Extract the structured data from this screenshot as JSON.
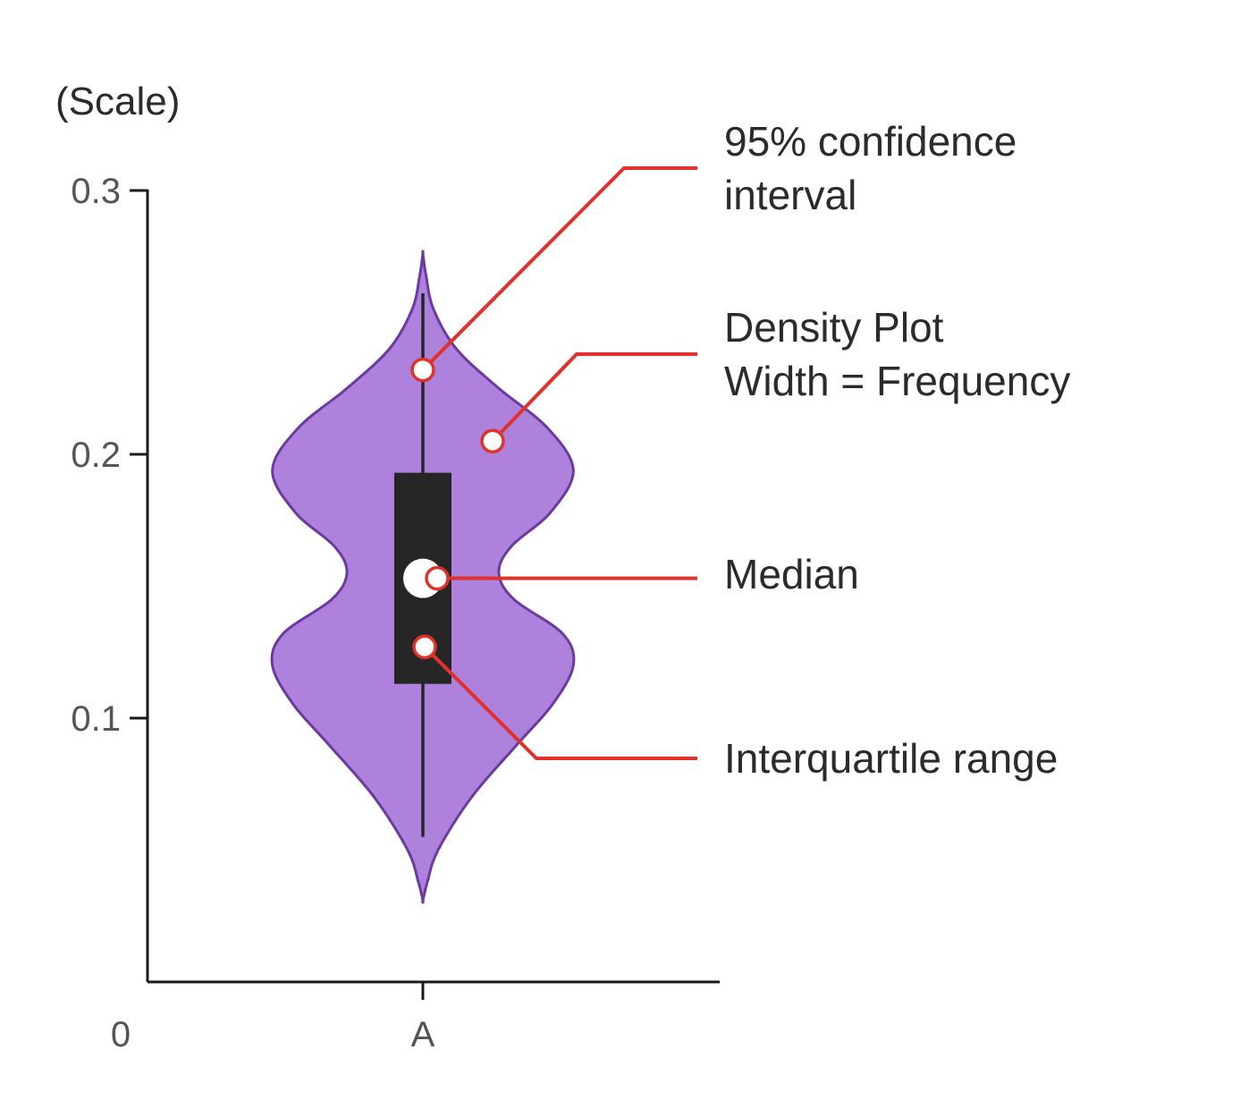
{
  "chart_data": {
    "type": "violin",
    "title": "",
    "xlabel": "",
    "ylabel": "(Scale)",
    "ylim": [
      0,
      0.3
    ],
    "yticks": [
      "0.3",
      "0.2",
      "0.1"
    ],
    "origin_label": "0",
    "categories": [
      "A"
    ],
    "grid": false,
    "legend": "none",
    "violins": [
      {
        "category": "A",
        "min": 0.055,
        "q1": 0.113,
        "median": 0.153,
        "q3": 0.193,
        "max": 0.261,
        "density_extent": [
          0.031,
          0.276
        ],
        "density_profile": [
          {
            "y": 0.031,
            "w": 0.0
          },
          {
            "y": 0.038,
            "w": 0.03
          },
          {
            "y": 0.05,
            "w": 0.1
          },
          {
            "y": 0.07,
            "w": 0.32
          },
          {
            "y": 0.09,
            "w": 0.62
          },
          {
            "y": 0.105,
            "w": 0.85
          },
          {
            "y": 0.12,
            "w": 0.99
          },
          {
            "y": 0.132,
            "w": 0.92
          },
          {
            "y": 0.145,
            "w": 0.6
          },
          {
            "y": 0.155,
            "w": 0.5
          },
          {
            "y": 0.165,
            "w": 0.58
          },
          {
            "y": 0.178,
            "w": 0.84
          },
          {
            "y": 0.194,
            "w": 0.99
          },
          {
            "y": 0.21,
            "w": 0.82
          },
          {
            "y": 0.225,
            "w": 0.5
          },
          {
            "y": 0.24,
            "w": 0.22
          },
          {
            "y": 0.255,
            "w": 0.07
          },
          {
            "y": 0.268,
            "w": 0.02
          },
          {
            "y": 0.276,
            "w": 0.0
          }
        ]
      }
    ],
    "annotations": [
      {
        "lines": [
          "95% confidence",
          "interval"
        ],
        "target": "whisker",
        "y": 0.232
      },
      {
        "lines": [
          "Density Plot",
          "Width = Frequency"
        ],
        "target": "density",
        "y": 0.205
      },
      {
        "lines": [
          "Median"
        ],
        "target": "median",
        "y": 0.153
      },
      {
        "lines": [
          "Interquartile range"
        ],
        "target": "box",
        "y": 0.127
      }
    ]
  },
  "colors": {
    "violin_fill": "#ae81dd",
    "violin_stroke": "#6a3a9e",
    "box": "#262626",
    "median_dot": "#ffffff",
    "annotation": "#e0312a",
    "axis": "#1a1a1a"
  }
}
